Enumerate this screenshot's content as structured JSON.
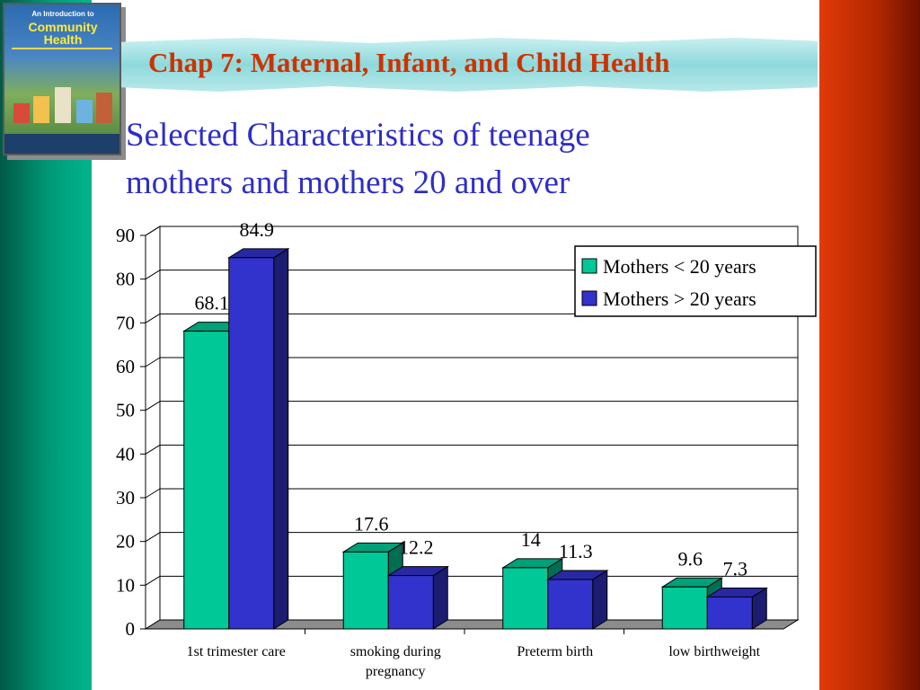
{
  "slide_title": "Chap 7: Maternal, Infant, and Child Health",
  "book": {
    "small_text": "An Introduction to",
    "big_text": "Community Health"
  },
  "colors": {
    "series_1": "#00c896",
    "series_2": "#3232cc",
    "title_red": "#cc3300",
    "title_blue": "#2e2ec8"
  },
  "chart_data": {
    "type": "bar",
    "title": "Selected Characteristics of teenage mothers and mothers 20 and over",
    "title_lines": [
      "Selected Characteristics of teenage",
      "mothers and mothers 20 and over"
    ],
    "categories": [
      "1st trimester care",
      "smoking during pregnancy",
      "Preterm birth",
      "low birthweight"
    ],
    "category_lines": [
      [
        "1st trimester care"
      ],
      [
        "smoking during",
        "pregnancy"
      ],
      [
        "Preterm birth"
      ],
      [
        "low birthweight"
      ]
    ],
    "series": [
      {
        "name": "Mothers < 20 years",
        "values": [
          68.1,
          17.6,
          14,
          9.6
        ],
        "labels": [
          "68.1",
          "17.6",
          "14",
          "9.6"
        ]
      },
      {
        "name": "Mothers > 20 years",
        "values": [
          84.9,
          12.2,
          11.3,
          7.3
        ],
        "labels": [
          "84.9",
          "12.2",
          "11.3",
          "7.3"
        ]
      }
    ],
    "xlabel": "",
    "ylabel": "",
    "ylim": [
      0,
      90
    ],
    "y_ticks": [
      0,
      10,
      20,
      30,
      40,
      50,
      60,
      70,
      80,
      90
    ],
    "grid": true,
    "three_d": true,
    "legend_position": "top-right"
  }
}
